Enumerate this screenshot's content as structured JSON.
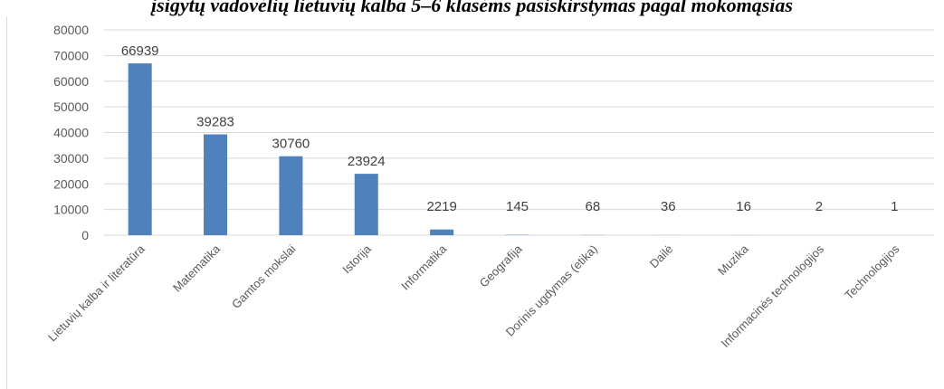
{
  "chart_data": {
    "type": "bar",
    "title": "įsigytų vadovėlių lietuvių kalba 5–6 klasėms pasiskirstymas pagal mokomąsias",
    "categories": [
      "Lietuvių kalba ir literatūra",
      "Matematika",
      "Gamtos mokslai",
      "Istorija",
      "Informatika",
      "Geografija",
      "Dorinis ugdymas (etika)",
      "Dailė",
      "Muzika",
      "Informacinės technologijos",
      "Technologijos"
    ],
    "values": [
      66939,
      39283,
      30760,
      23924,
      2219,
      145,
      68,
      36,
      16,
      2,
      1
    ],
    "data_labels": [
      "66939",
      "39283",
      "30760",
      "23924",
      "2219",
      "145",
      "68",
      "36",
      "16",
      "2",
      "1"
    ],
    "ylim": [
      0,
      80000
    ],
    "yticks": [
      0,
      10000,
      20000,
      30000,
      40000,
      50000,
      60000,
      70000,
      80000
    ],
    "grid": true,
    "bar_color": "#4f81bd",
    "grid_color": "#d9d9d9"
  }
}
